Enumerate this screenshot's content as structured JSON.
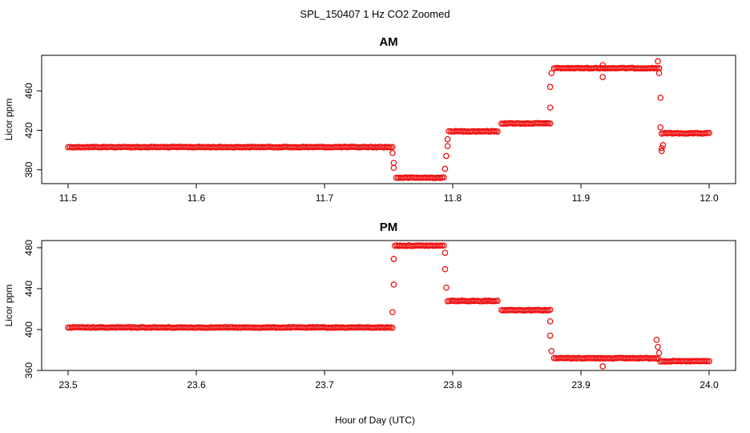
{
  "chart_data": {
    "type": "scatter",
    "title": "SPL_150407  1 Hz CO2 Zoomed",
    "xlabel": "Hour of Day (UTC)",
    "marker_color": "#ee1111",
    "marker": "open-circle",
    "panels": [
      {
        "title": "AM",
        "ylabel": "Licor ppm",
        "xlim": [
          11.5,
          12.0
        ],
        "ylim": [
          366,
          496
        ],
        "xticks": [
          "11.5",
          "11.6",
          "11.7",
          "11.8",
          "11.9",
          "12.0"
        ],
        "yticks": [
          "380",
          "420",
          "460"
        ],
        "segments": [
          {
            "x": [
              11.5,
              11.753
            ],
            "y": 403
          },
          {
            "x": [
              11.756,
              11.793
            ],
            "y": 372
          },
          {
            "x": [
              11.797,
              11.835
            ],
            "y": 419
          },
          {
            "x": [
              11.838,
              11.876
            ],
            "y": 427
          },
          {
            "x": [
              11.879,
              11.961
            ],
            "y": 483
          },
          {
            "x": [
              11.963,
              12.0
            ],
            "y": 417
          }
        ],
        "transition_points": [
          [
            11.753,
            397
          ],
          [
            11.754,
            387
          ],
          [
            11.754,
            382
          ],
          [
            11.794,
            381
          ],
          [
            11.795,
            394
          ],
          [
            11.796,
            404
          ],
          [
            11.796,
            411
          ],
          [
            11.876,
            443
          ],
          [
            11.876,
            464
          ],
          [
            11.877,
            478
          ],
          [
            11.917,
            474
          ],
          [
            11.917,
            486
          ],
          [
            11.96,
            490
          ],
          [
            11.961,
            478
          ],
          [
            11.962,
            453
          ],
          [
            11.962,
            423
          ],
          [
            11.963,
            399
          ],
          [
            11.963,
            402
          ],
          [
            11.964,
            405
          ]
        ]
      },
      {
        "title": "PM",
        "ylabel": "Licor ppm",
        "xlim": [
          23.5,
          24.0
        ],
        "ylim": [
          360,
          487
        ],
        "xticks": [
          "23.5",
          "23.6",
          "23.7",
          "23.8",
          "23.9",
          "24.0"
        ],
        "yticks": [
          "360",
          "400",
          "440",
          "480"
        ],
        "segments": [
          {
            "x": [
              23.5,
              23.753
            ],
            "y": 402
          },
          {
            "x": [
              23.755,
              23.793
            ],
            "y": 482
          },
          {
            "x": [
              23.796,
              23.835
            ],
            "y": 428
          },
          {
            "x": [
              23.838,
              23.876
            ],
            "y": 419
          },
          {
            "x": [
              23.879,
              23.96
            ],
            "y": 372
          },
          {
            "x": [
              23.962,
              24.0
            ],
            "y": 369
          }
        ],
        "transition_points": [
          [
            23.753,
            417
          ],
          [
            23.754,
            444
          ],
          [
            23.754,
            469
          ],
          [
            23.794,
            475
          ],
          [
            23.794,
            459
          ],
          [
            23.795,
            441
          ],
          [
            23.876,
            408
          ],
          [
            23.876,
            394
          ],
          [
            23.877,
            379
          ],
          [
            23.917,
            364
          ],
          [
            23.959,
            390
          ],
          [
            23.96,
            383
          ],
          [
            23.961,
            377
          ]
        ]
      }
    ]
  }
}
